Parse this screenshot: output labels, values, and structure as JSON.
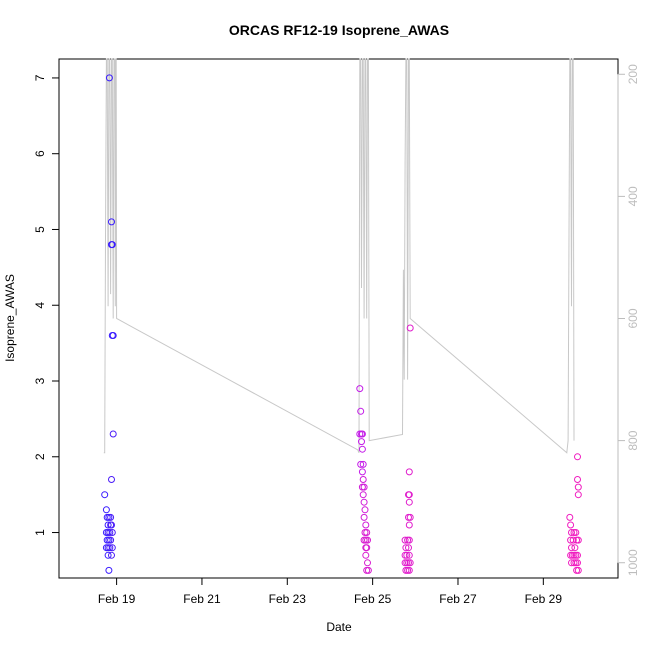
{
  "chart_data": {
    "type": "scatter",
    "title": "ORCAS RF12-19 Isoprene_AWAS",
    "xlabel": "Date",
    "ylabel": "Isoprene_AWAS",
    "xlim": [
      17.65,
      30.75
    ],
    "ylim": [
      0.4,
      7.25
    ],
    "x_tick_labels": [
      "Feb 19",
      "Feb 21",
      "Feb 23",
      "Feb 25",
      "Feb 27",
      "Feb 29"
    ],
    "x_tick_values": [
      19,
      21,
      23,
      25,
      27,
      29
    ],
    "y_tick_values": [
      1,
      2,
      3,
      4,
      5,
      6,
      7
    ],
    "right_axis": {
      "ylim": [
        1025,
        175
      ],
      "tick_values": [
        200,
        400,
        600,
        800,
        1000
      ],
      "color": "#bdbdbd"
    },
    "points": [
      {
        "x": 18.83,
        "y": 7.0,
        "color": "#3a1cff"
      },
      {
        "x": 18.88,
        "y": 5.1,
        "color": "#3a1cff"
      },
      {
        "x": 18.88,
        "y": 4.8,
        "color": "#3a1cff"
      },
      {
        "x": 18.9,
        "y": 4.8,
        "color": "#3a1cff"
      },
      {
        "x": 18.9,
        "y": 3.6,
        "color": "#3a1cff"
      },
      {
        "x": 18.92,
        "y": 3.6,
        "color": "#3a1cff"
      },
      {
        "x": 18.92,
        "y": 2.3,
        "color": "#4a1cf8"
      },
      {
        "x": 18.88,
        "y": 1.7,
        "color": "#4a1cf8"
      },
      {
        "x": 18.72,
        "y": 1.5,
        "color": "#3a1cff"
      },
      {
        "x": 18.76,
        "y": 1.3,
        "color": "#3a1cff"
      },
      {
        "x": 18.78,
        "y": 1.2,
        "color": "#3a1cff"
      },
      {
        "x": 18.82,
        "y": 1.2,
        "color": "#3a1cff"
      },
      {
        "x": 18.86,
        "y": 1.2,
        "color": "#4a1cf8"
      },
      {
        "x": 18.8,
        "y": 1.1,
        "color": "#3a1cff"
      },
      {
        "x": 18.86,
        "y": 1.1,
        "color": "#4a1cf8"
      },
      {
        "x": 18.88,
        "y": 1.1,
        "color": "#4a1cf8"
      },
      {
        "x": 18.76,
        "y": 1.0,
        "color": "#3a1cff"
      },
      {
        "x": 18.8,
        "y": 1.0,
        "color": "#3a1cff"
      },
      {
        "x": 18.84,
        "y": 1.0,
        "color": "#4a1cf8"
      },
      {
        "x": 18.9,
        "y": 1.0,
        "color": "#4a1cf8"
      },
      {
        "x": 18.78,
        "y": 0.9,
        "color": "#3a1cff"
      },
      {
        "x": 18.82,
        "y": 0.9,
        "color": "#3a1cff"
      },
      {
        "x": 18.86,
        "y": 0.9,
        "color": "#4a1cf8"
      },
      {
        "x": 18.76,
        "y": 0.8,
        "color": "#3a1cff"
      },
      {
        "x": 18.8,
        "y": 0.8,
        "color": "#3a1cff"
      },
      {
        "x": 18.84,
        "y": 0.8,
        "color": "#4a1cf8"
      },
      {
        "x": 18.9,
        "y": 0.8,
        "color": "#4a1cf8"
      },
      {
        "x": 18.8,
        "y": 0.7,
        "color": "#3a1cff"
      },
      {
        "x": 18.88,
        "y": 0.7,
        "color": "#4a1cf8"
      },
      {
        "x": 18.82,
        "y": 0.5,
        "color": "#3a1cff"
      },
      {
        "x": 24.7,
        "y": 2.9,
        "color": "#c41ce8"
      },
      {
        "x": 24.72,
        "y": 2.6,
        "color": "#c41ce8"
      },
      {
        "x": 24.7,
        "y": 2.3,
        "color": "#c41ce8"
      },
      {
        "x": 24.74,
        "y": 2.3,
        "color": "#c41ce8"
      },
      {
        "x": 24.76,
        "y": 2.3,
        "color": "#c41ce8"
      },
      {
        "x": 24.74,
        "y": 2.2,
        "color": "#c41ce8"
      },
      {
        "x": 24.76,
        "y": 2.1,
        "color": "#c41ce8"
      },
      {
        "x": 24.72,
        "y": 1.9,
        "color": "#c41ce8"
      },
      {
        "x": 24.78,
        "y": 1.9,
        "color": "#c41ce8"
      },
      {
        "x": 24.76,
        "y": 1.8,
        "color": "#c41ce8"
      },
      {
        "x": 24.78,
        "y": 1.7,
        "color": "#d01cd8"
      },
      {
        "x": 24.76,
        "y": 1.6,
        "color": "#d01cd8"
      },
      {
        "x": 24.8,
        "y": 1.6,
        "color": "#d01cd8"
      },
      {
        "x": 24.78,
        "y": 1.5,
        "color": "#d01cd8"
      },
      {
        "x": 24.8,
        "y": 1.4,
        "color": "#d01cd8"
      },
      {
        "x": 24.82,
        "y": 1.3,
        "color": "#d01cd8"
      },
      {
        "x": 24.8,
        "y": 1.2,
        "color": "#d01cd8"
      },
      {
        "x": 24.84,
        "y": 1.1,
        "color": "#d01cd8"
      },
      {
        "x": 24.82,
        "y": 1.0,
        "color": "#d81cd0"
      },
      {
        "x": 24.86,
        "y": 1.0,
        "color": "#d81cd0"
      },
      {
        "x": 24.8,
        "y": 0.9,
        "color": "#d81cd0"
      },
      {
        "x": 24.84,
        "y": 0.9,
        "color": "#d81cd0"
      },
      {
        "x": 24.88,
        "y": 0.9,
        "color": "#d81cd0"
      },
      {
        "x": 24.84,
        "y": 0.8,
        "color": "#d81cd0"
      },
      {
        "x": 24.86,
        "y": 0.8,
        "color": "#d81cd0"
      },
      {
        "x": 24.84,
        "y": 0.7,
        "color": "#d81cd0"
      },
      {
        "x": 24.88,
        "y": 0.6,
        "color": "#d81cd0"
      },
      {
        "x": 24.86,
        "y": 0.5,
        "color": "#d81cd0"
      },
      {
        "x": 24.9,
        "y": 0.5,
        "color": "#d81cd0"
      },
      {
        "x": 25.88,
        "y": 3.7,
        "color": "#e01ccc"
      },
      {
        "x": 25.86,
        "y": 1.8,
        "color": "#e01ccc"
      },
      {
        "x": 25.84,
        "y": 1.5,
        "color": "#e01ccc"
      },
      {
        "x": 25.86,
        "y": 1.5,
        "color": "#e01ccc"
      },
      {
        "x": 25.86,
        "y": 1.4,
        "color": "#e01ccc"
      },
      {
        "x": 25.84,
        "y": 1.2,
        "color": "#e01ccc"
      },
      {
        "x": 25.88,
        "y": 1.2,
        "color": "#e01ccc"
      },
      {
        "x": 25.86,
        "y": 1.1,
        "color": "#e01ccc"
      },
      {
        "x": 25.76,
        "y": 0.9,
        "color": "#e01ccc"
      },
      {
        "x": 25.82,
        "y": 0.9,
        "color": "#e01ccc"
      },
      {
        "x": 25.86,
        "y": 0.9,
        "color": "#e01ccc"
      },
      {
        "x": 25.78,
        "y": 0.8,
        "color": "#e01ccc"
      },
      {
        "x": 25.84,
        "y": 0.8,
        "color": "#e01ccc"
      },
      {
        "x": 25.76,
        "y": 0.7,
        "color": "#e01ccc"
      },
      {
        "x": 25.8,
        "y": 0.7,
        "color": "#e01ccc"
      },
      {
        "x": 25.86,
        "y": 0.7,
        "color": "#e01ccc"
      },
      {
        "x": 25.76,
        "y": 0.6,
        "color": "#e01ccc"
      },
      {
        "x": 25.8,
        "y": 0.6,
        "color": "#e01ccc"
      },
      {
        "x": 25.84,
        "y": 0.6,
        "color": "#e01ccc"
      },
      {
        "x": 25.88,
        "y": 0.6,
        "color": "#e01ccc"
      },
      {
        "x": 25.78,
        "y": 0.5,
        "color": "#e01ccc"
      },
      {
        "x": 25.82,
        "y": 0.5,
        "color": "#e01ccc"
      },
      {
        "x": 25.86,
        "y": 0.5,
        "color": "#e01ccc"
      },
      {
        "x": 29.8,
        "y": 2.0,
        "color": "#f01cc0"
      },
      {
        "x": 29.8,
        "y": 1.7,
        "color": "#f01cc0"
      },
      {
        "x": 29.82,
        "y": 1.6,
        "color": "#f01cc0"
      },
      {
        "x": 29.82,
        "y": 1.5,
        "color": "#f01cc0"
      },
      {
        "x": 29.62,
        "y": 1.2,
        "color": "#f01cc0"
      },
      {
        "x": 29.64,
        "y": 1.1,
        "color": "#f01cc0"
      },
      {
        "x": 29.66,
        "y": 1.0,
        "color": "#f01cc0"
      },
      {
        "x": 29.72,
        "y": 1.0,
        "color": "#f01cc0"
      },
      {
        "x": 29.76,
        "y": 1.0,
        "color": "#f01cc0"
      },
      {
        "x": 29.64,
        "y": 0.9,
        "color": "#f01cc0"
      },
      {
        "x": 29.7,
        "y": 0.9,
        "color": "#f01cc0"
      },
      {
        "x": 29.78,
        "y": 0.9,
        "color": "#f01cc0"
      },
      {
        "x": 29.82,
        "y": 0.9,
        "color": "#f01cc0"
      },
      {
        "x": 29.66,
        "y": 0.8,
        "color": "#f01cc0"
      },
      {
        "x": 29.74,
        "y": 0.8,
        "color": "#f01cc0"
      },
      {
        "x": 29.64,
        "y": 0.7,
        "color": "#f01cc0"
      },
      {
        "x": 29.68,
        "y": 0.7,
        "color": "#f01cc0"
      },
      {
        "x": 29.72,
        "y": 0.7,
        "color": "#f01cc0"
      },
      {
        "x": 29.76,
        "y": 0.7,
        "color": "#f01cc0"
      },
      {
        "x": 29.8,
        "y": 0.7,
        "color": "#f01cc0"
      },
      {
        "x": 29.66,
        "y": 0.6,
        "color": "#f01cc0"
      },
      {
        "x": 29.72,
        "y": 0.6,
        "color": "#f01cc0"
      },
      {
        "x": 29.76,
        "y": 0.6,
        "color": "#f01cc0"
      },
      {
        "x": 29.8,
        "y": 0.6,
        "color": "#f01cc0"
      },
      {
        "x": 29.78,
        "y": 0.5,
        "color": "#f01cc0"
      },
      {
        "x": 29.82,
        "y": 0.5,
        "color": "#f01cc0"
      }
    ],
    "pressure_trace": {
      "color": "#c8c8c8",
      "points": [
        [
          18.7,
          820
        ],
        [
          18.72,
          820
        ],
        [
          18.74,
          470
        ],
        [
          18.76,
          175
        ],
        [
          18.78,
          175
        ],
        [
          18.8,
          580
        ],
        [
          18.82,
          175
        ],
        [
          18.84,
          175
        ],
        [
          18.86,
          560
        ],
        [
          18.88,
          175
        ],
        [
          18.9,
          175
        ],
        [
          18.92,
          600
        ],
        [
          18.94,
          175
        ],
        [
          18.96,
          175
        ],
        [
          18.97,
          580
        ],
        [
          18.98,
          175
        ],
        [
          18.99,
          175
        ],
        [
          19.0,
          600
        ],
        [
          24.65,
          815
        ],
        [
          24.68,
          820
        ],
        [
          24.7,
          175
        ],
        [
          24.72,
          175
        ],
        [
          24.74,
          550
        ],
        [
          24.76,
          175
        ],
        [
          24.78,
          175
        ],
        [
          24.8,
          600
        ],
        [
          24.82,
          175
        ],
        [
          24.84,
          175
        ],
        [
          24.86,
          600
        ],
        [
          24.88,
          175
        ],
        [
          24.9,
          175
        ],
        [
          24.92,
          800
        ],
        [
          25.7,
          790
        ],
        [
          25.72,
          520
        ],
        [
          25.74,
          700
        ],
        [
          25.76,
          345
        ],
        [
          25.78,
          175
        ],
        [
          25.8,
          175
        ],
        [
          25.82,
          700
        ],
        [
          25.84,
          175
        ],
        [
          25.86,
          175
        ],
        [
          25.88,
          600
        ],
        [
          29.55,
          820
        ],
        [
          29.58,
          800
        ],
        [
          29.6,
          500
        ],
        [
          29.62,
          175
        ],
        [
          29.64,
          175
        ],
        [
          29.66,
          580
        ],
        [
          29.68,
          175
        ],
        [
          29.7,
          175
        ],
        [
          29.72,
          800
        ]
      ]
    }
  }
}
